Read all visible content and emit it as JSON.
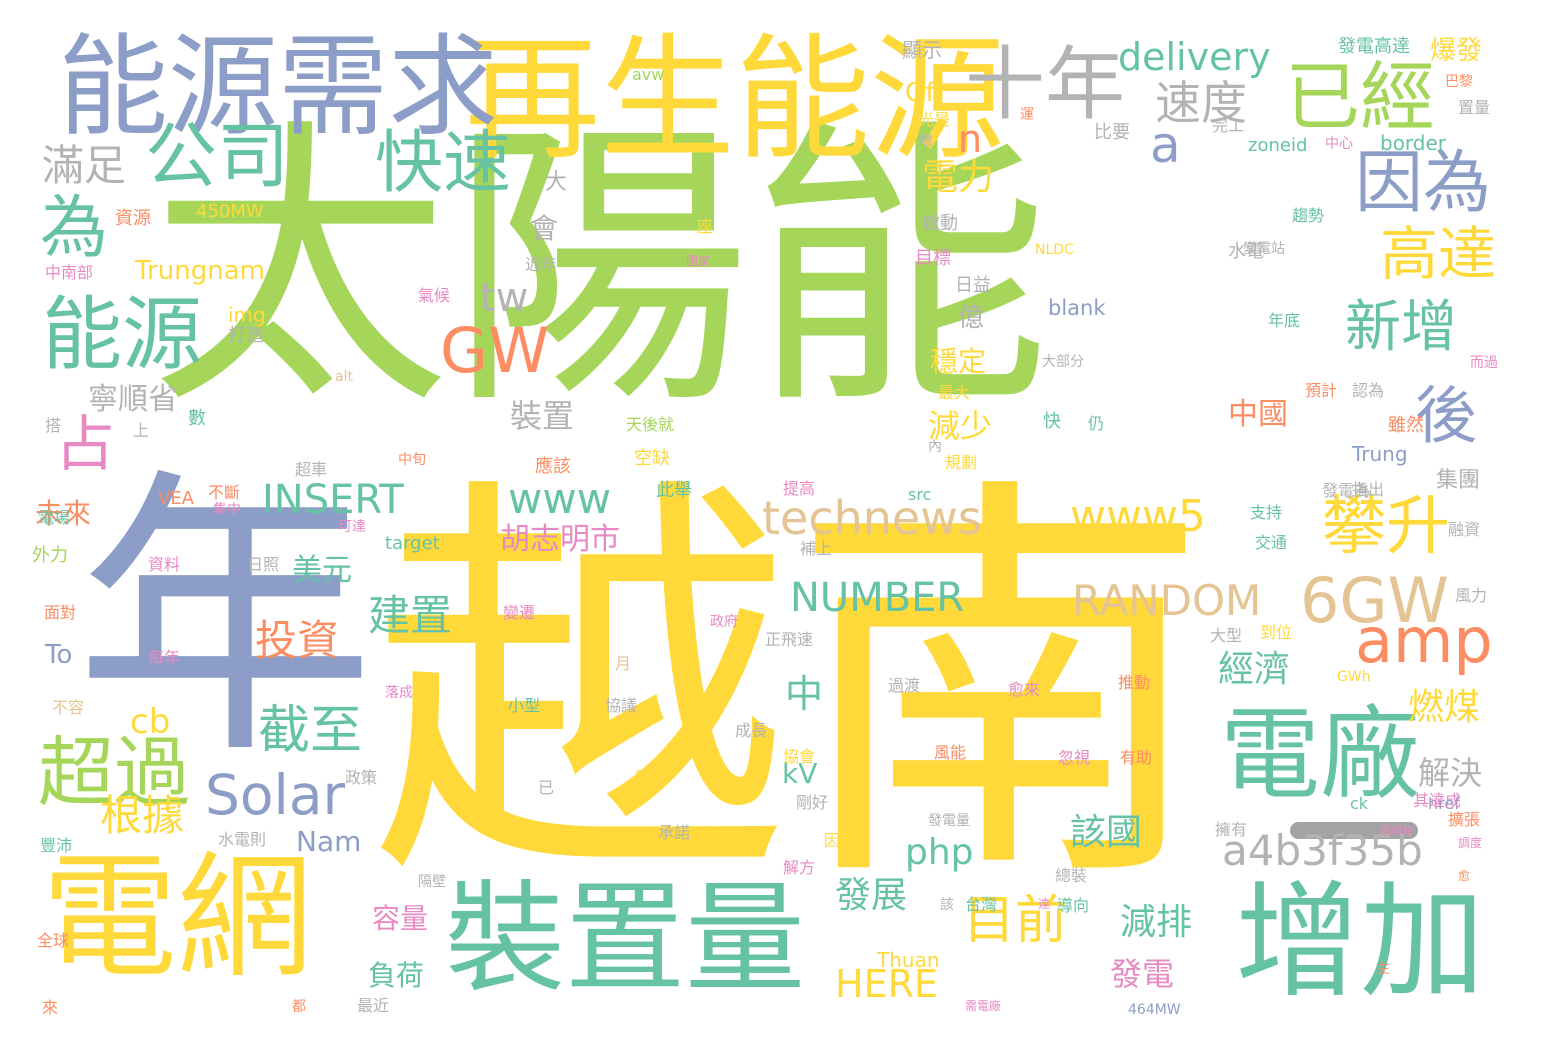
{
  "palette": {
    "green": "#a5d65a",
    "yellow": "#ffd93a",
    "blue": "#8c9ec8",
    "teal": "#66c2a5",
    "orange": "#fc8d62",
    "gray": "#b3b3b3",
    "tan": "#e5c494",
    "pink": "#e78ac3"
  },
  "words": [
    {
      "text": "太陽能",
      "c": "green"
    },
    {
      "text": "越南",
      "c": "yellow"
    },
    {
      "text": "年",
      "c": "blue"
    },
    {
      "text": "再生能源",
      "c": "yellow"
    },
    {
      "text": "能源需求",
      "c": "blue"
    },
    {
      "text": "電網",
      "c": "yellow"
    },
    {
      "text": "裝置量",
      "c": "teal"
    },
    {
      "text": "增加",
      "c": "teal"
    },
    {
      "text": "電廠",
      "c": "teal"
    },
    {
      "text": "十年",
      "c": "gray"
    },
    {
      "text": "已經",
      "c": "green"
    },
    {
      "text": "能源",
      "c": "teal"
    },
    {
      "text": "公司",
      "c": "teal"
    },
    {
      "text": "快速",
      "c": "teal"
    },
    {
      "text": "因為",
      "c": "blue"
    },
    {
      "text": "超過",
      "c": "green"
    },
    {
      "text": "GW",
      "c": "orange"
    },
    {
      "text": "Solar",
      "c": "blue"
    },
    {
      "text": "amp",
      "c": "orange"
    },
    {
      "text": "6GW",
      "c": "tan"
    },
    {
      "text": "technews",
      "c": "tan"
    },
    {
      "text": "www5",
      "c": "yellow"
    },
    {
      "text": "delivery",
      "c": "teal"
    },
    {
      "text": "RANDOM",
      "c": "tan"
    },
    {
      "text": "a4b3f35b",
      "c": "gray"
    },
    {
      "text": "NUMBER",
      "c": "teal"
    },
    {
      "text": "INSERT",
      "c": "teal"
    },
    {
      "text": "HERE",
      "c": "yellow"
    },
    {
      "text": "www",
      "c": "teal"
    },
    {
      "text": "php",
      "c": "teal"
    },
    {
      "text": "為",
      "c": "teal"
    },
    {
      "text": "後",
      "c": "blue"
    },
    {
      "text": "占",
      "c": "pink"
    },
    {
      "text": "a",
      "c": "blue"
    },
    {
      "text": "tw",
      "c": "gray"
    },
    {
      "text": "cb",
      "c": "yellow"
    },
    {
      "text": "n",
      "c": "orange"
    },
    {
      "text": "中",
      "c": "teal"
    },
    {
      "text": "高達",
      "c": "yellow"
    },
    {
      "text": "新增",
      "c": "teal"
    },
    {
      "text": "攀升",
      "c": "yellow"
    },
    {
      "text": "速度",
      "c": "gray"
    },
    {
      "text": "滿足",
      "c": "gray"
    },
    {
      "text": "目前",
      "c": "yellow"
    },
    {
      "text": "截至",
      "c": "teal"
    },
    {
      "text": "根據",
      "c": "yellow"
    },
    {
      "text": "投資",
      "c": "orange"
    },
    {
      "text": "建置",
      "c": "teal"
    },
    {
      "text": "電力",
      "c": "yellow"
    },
    {
      "text": "寧順省",
      "c": "gray"
    },
    {
      "text": "Trungnam",
      "c": "yellow"
    },
    {
      "text": "胡志明市",
      "c": "pink"
    },
    {
      "text": "美元",
      "c": "teal"
    },
    {
      "text": "經濟",
      "c": "teal"
    },
    {
      "text": "燃煤",
      "c": "yellow"
    },
    {
      "text": "解決",
      "c": "gray"
    },
    {
      "text": "該國",
      "c": "teal"
    },
    {
      "text": "發展",
      "c": "teal"
    },
    {
      "text": "減排",
      "c": "teal"
    },
    {
      "text": "發電",
      "c": "pink"
    },
    {
      "text": "中國",
      "c": "orange"
    },
    {
      "text": "裝置",
      "c": "gray"
    },
    {
      "text": "減少",
      "c": "yellow"
    },
    {
      "text": "穩定",
      "c": "yellow"
    },
    {
      "text": "會",
      "c": "gray"
    },
    {
      "text": "億",
      "c": "gray"
    },
    {
      "text": "未來",
      "c": "orange"
    },
    {
      "text": "容量",
      "c": "pink"
    },
    {
      "text": "負荷",
      "c": "teal"
    },
    {
      "text": "kV",
      "c": "teal"
    },
    {
      "text": "Nam",
      "c": "blue"
    },
    {
      "text": "Of",
      "c": "yellow"
    },
    {
      "text": "To",
      "c": "blue"
    },
    {
      "text": "大",
      "c": "gray"
    },
    {
      "text": "集團",
      "c": "gray"
    },
    {
      "text": "img",
      "c": "yellow"
    },
    {
      "text": "border",
      "c": "teal"
    },
    {
      "text": "blank",
      "c": "blue"
    },
    {
      "text": "zoneid",
      "c": "teal"
    },
    {
      "text": "中心",
      "c": "pink"
    },
    {
      "text": "Trung",
      "c": "blue"
    },
    {
      "text": "Thuan",
      "c": "yellow"
    },
    {
      "text": "450MW",
      "c": "yellow"
    },
    {
      "text": "src",
      "c": "teal"
    },
    {
      "text": "target",
      "c": "teal"
    },
    {
      "text": "alt",
      "c": "tan"
    },
    {
      "text": "VEA",
      "c": "orange"
    },
    {
      "text": "NLDC",
      "c": "yellow"
    },
    {
      "text": "464MW",
      "c": "blue"
    },
    {
      "text": "GWh",
      "c": "yellow"
    },
    {
      "text": "ck",
      "c": "teal"
    },
    {
      "text": "href",
      "c": "blue"
    },
    {
      "text": "avw",
      "c": "green"
    },
    {
      "text": "發電高達",
      "c": "teal"
    },
    {
      "text": "爆發",
      "c": "yellow"
    },
    {
      "text": "顯示",
      "c": "gray"
    },
    {
      "text": "巴黎",
      "c": "orange"
    },
    {
      "text": "置量",
      "c": "gray"
    },
    {
      "text": "比要",
      "c": "gray"
    },
    {
      "text": "完工",
      "c": "gray"
    },
    {
      "text": "光是",
      "c": "yellow"
    },
    {
      "text": "資源",
      "c": "orange"
    },
    {
      "text": "中南部",
      "c": "pink"
    },
    {
      "text": "啟動",
      "c": "gray"
    },
    {
      "text": "目標",
      "c": "pink"
    },
    {
      "text": "日益",
      "c": "gray"
    },
    {
      "text": "水電",
      "c": "gray"
    },
    {
      "text": "趨勢",
      "c": "teal"
    },
    {
      "text": "變電站",
      "c": "gray"
    },
    {
      "text": "國家",
      "c": "pink"
    },
    {
      "text": "近年",
      "c": "gray"
    },
    {
      "text": "氣候",
      "c": "pink"
    },
    {
      "text": "打造",
      "c": "gray"
    },
    {
      "text": "年底",
      "c": "teal"
    },
    {
      "text": "大部分",
      "c": "gray"
    },
    {
      "text": "最大",
      "c": "yellow"
    },
    {
      "text": "預計",
      "c": "orange"
    },
    {
      "text": "認為",
      "c": "gray"
    },
    {
      "text": "數",
      "c": "teal"
    },
    {
      "text": "搭",
      "c": "gray"
    },
    {
      "text": "上",
      "c": "gray"
    },
    {
      "text": "天後就",
      "c": "green"
    },
    {
      "text": "快",
      "c": "teal"
    },
    {
      "text": "仍",
      "c": "teal"
    },
    {
      "text": "雖然",
      "c": "orange"
    },
    {
      "text": "空缺",
      "c": "yellow"
    },
    {
      "text": "應該",
      "c": "orange"
    },
    {
      "text": "中旬",
      "c": "orange"
    },
    {
      "text": "規劃",
      "c": "yellow"
    },
    {
      "text": "超車",
      "c": "gray"
    },
    {
      "text": "此舉",
      "c": "teal"
    },
    {
      "text": "內",
      "c": "gray"
    },
    {
      "text": "發電為",
      "c": "gray"
    },
    {
      "text": "指出",
      "c": "gray"
    },
    {
      "text": "提高",
      "c": "pink"
    },
    {
      "text": "不斷",
      "c": "orange"
    },
    {
      "text": "集中",
      "c": "pink"
    },
    {
      "text": "支持",
      "c": "teal"
    },
    {
      "text": "電場",
      "c": "teal"
    },
    {
      "text": "可達",
      "c": "pink"
    },
    {
      "text": "交通",
      "c": "teal"
    },
    {
      "text": "融資",
      "c": "gray"
    },
    {
      "text": "外力",
      "c": "green"
    },
    {
      "text": "補上",
      "c": "gray"
    },
    {
      "text": "資料",
      "c": "pink"
    },
    {
      "text": "日照",
      "c": "gray"
    },
    {
      "text": "面對",
      "c": "orange"
    },
    {
      "text": "變遷",
      "c": "pink"
    },
    {
      "text": "政府",
      "c": "pink"
    },
    {
      "text": "正飛速",
      "c": "gray"
    },
    {
      "text": "大型",
      "c": "gray"
    },
    {
      "text": "到位",
      "c": "yellow"
    },
    {
      "text": "風力",
      "c": "gray"
    },
    {
      "text": "每年",
      "c": "pink"
    },
    {
      "text": "月",
      "c": "tan"
    },
    {
      "text": "過渡",
      "c": "gray"
    },
    {
      "text": "愈來",
      "c": "pink"
    },
    {
      "text": "推動",
      "c": "orange"
    },
    {
      "text": "不容",
      "c": "tan"
    },
    {
      "text": "小型",
      "c": "teal"
    },
    {
      "text": "協議",
      "c": "gray"
    },
    {
      "text": "落成",
      "c": "pink"
    },
    {
      "text": "成長",
      "c": "gray"
    },
    {
      "text": "協會",
      "c": "yellow"
    },
    {
      "text": "風能",
      "c": "orange"
    },
    {
      "text": "政策",
      "c": "gray"
    },
    {
      "text": "明確",
      "c": "yellow"
    },
    {
      "text": "忽視",
      "c": "pink"
    },
    {
      "text": "有助",
      "c": "orange"
    },
    {
      "text": "剛好",
      "c": "gray"
    },
    {
      "text": "已",
      "c": "gray"
    },
    {
      "text": "其達成",
      "c": "pink"
    },
    {
      "text": "電網並",
      "c": "pink"
    },
    {
      "text": "擴張",
      "c": "orange"
    },
    {
      "text": "調度",
      "c": "pink"
    },
    {
      "text": "承諾",
      "c": "gray"
    },
    {
      "text": "水電則",
      "c": "gray"
    },
    {
      "text": "因應",
      "c": "yellow"
    },
    {
      "text": "解方",
      "c": "pink"
    },
    {
      "text": "發電量",
      "c": "gray"
    },
    {
      "text": "擁有",
      "c": "gray"
    },
    {
      "text": "愈",
      "c": "orange"
    },
    {
      "text": "豐沛",
      "c": "teal"
    },
    {
      "text": "隔壁",
      "c": "gray"
    },
    {
      "text": "達",
      "c": "pink"
    },
    {
      "text": "該",
      "c": "gray"
    },
    {
      "text": "台灣",
      "c": "teal"
    },
    {
      "text": "總裝",
      "c": "gray"
    },
    {
      "text": "導向",
      "c": "teal"
    },
    {
      "text": "全球",
      "c": "orange"
    },
    {
      "text": "來",
      "c": "orange"
    },
    {
      "text": "都",
      "c": "orange"
    },
    {
      "text": "最近",
      "c": "gray"
    },
    {
      "text": "座",
      "c": "yellow"
    },
    {
      "text": "總",
      "c": "gray"
    },
    {
      "text": "主",
      "c": "orange"
    },
    {
      "text": "需電廠",
      "c": "pink"
    },
    {
      "text": "運",
      "c": "orange"
    },
    {
      "text": "而過",
      "c": "pink"
    }
  ]
}
